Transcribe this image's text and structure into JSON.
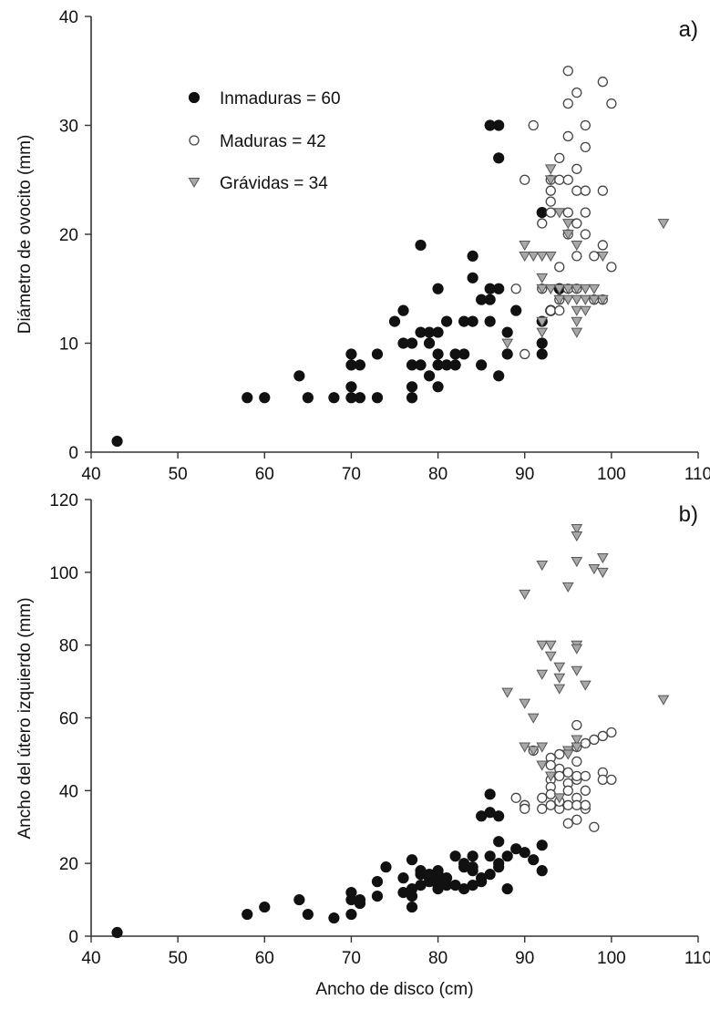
{
  "chart_data": [
    {
      "type": "scatter",
      "panel_label": "a)",
      "ylabel": "Diámetro de ovocito (mm)",
      "xlabel": "",
      "xlim": [
        40,
        110
      ],
      "ylim": [
        0,
        40
      ],
      "xticks": [
        40,
        50,
        60,
        70,
        80,
        90,
        100,
        110
      ],
      "yticks": [
        0,
        10,
        20,
        30,
        40
      ],
      "legend": {
        "placement": "upper-left",
        "entries": [
          {
            "label": "Inmaduras = 60",
            "marker": "filled-circle"
          },
          {
            "label": "Maduras = 42",
            "marker": "open-circle"
          },
          {
            "label": "Grávidas = 34",
            "marker": "triangle-down"
          }
        ]
      },
      "series": [
        {
          "name": "Inmaduras = 60",
          "marker": "filled-circle",
          "color": "#111111",
          "points": [
            [
              43,
              1
            ],
            [
              58,
              5
            ],
            [
              60,
              5
            ],
            [
              64,
              7
            ],
            [
              65,
              5
            ],
            [
              68,
              5
            ],
            [
              70,
              5
            ],
            [
              70,
              6
            ],
            [
              70,
              8
            ],
            [
              70,
              9
            ],
            [
              71,
              5
            ],
            [
              71,
              8
            ],
            [
              73,
              5
            ],
            [
              73,
              9
            ],
            [
              75,
              12
            ],
            [
              76,
              10
            ],
            [
              76,
              13
            ],
            [
              77,
              5
            ],
            [
              77,
              6
            ],
            [
              77,
              8
            ],
            [
              77,
              10
            ],
            [
              78,
              8
            ],
            [
              78,
              11
            ],
            [
              78,
              19
            ],
            [
              79,
              7
            ],
            [
              79,
              10
            ],
            [
              79,
              11
            ],
            [
              80,
              6
            ],
            [
              80,
              8
            ],
            [
              80,
              9
            ],
            [
              80,
              11
            ],
            [
              80,
              15
            ],
            [
              81,
              8
            ],
            [
              81,
              12
            ],
            [
              82,
              9
            ],
            [
              82,
              8
            ],
            [
              83,
              12
            ],
            [
              83,
              9
            ],
            [
              84,
              12
            ],
            [
              84,
              16
            ],
            [
              84,
              18
            ],
            [
              85,
              8
            ],
            [
              85,
              14
            ],
            [
              86,
              12
            ],
            [
              86,
              14
            ],
            [
              86,
              15
            ],
            [
              86,
              30
            ],
            [
              87,
              7
            ],
            [
              87,
              15
            ],
            [
              87,
              27
            ],
            [
              87,
              30
            ],
            [
              88,
              11
            ],
            [
              88,
              9
            ],
            [
              89,
              13
            ],
            [
              92,
              9
            ],
            [
              92,
              12
            ],
            [
              92,
              22
            ],
            [
              93,
              13
            ],
            [
              94,
              15
            ],
            [
              92,
              10
            ]
          ]
        },
        {
          "name": "Maduras = 42",
          "marker": "open-circle",
          "color": "#ffffff",
          "points": [
            [
              89,
              15
            ],
            [
              90,
              9
            ],
            [
              90,
              25
            ],
            [
              91,
              30
            ],
            [
              92,
              21
            ],
            [
              92,
              15
            ],
            [
              93,
              22
            ],
            [
              93,
              24
            ],
            [
              93,
              25
            ],
            [
              93,
              23
            ],
            [
              93,
              13
            ],
            [
              94,
              27
            ],
            [
              94,
              25
            ],
            [
              94,
              17
            ],
            [
              94,
              14
            ],
            [
              94,
              13
            ],
            [
              95,
              32
            ],
            [
              95,
              35
            ],
            [
              95,
              29
            ],
            [
              95,
              25
            ],
            [
              95,
              22
            ],
            [
              95,
              20
            ],
            [
              95,
              15
            ],
            [
              96,
              33
            ],
            [
              96,
              26
            ],
            [
              96,
              21
            ],
            [
              96,
              18
            ],
            [
              96,
              15
            ],
            [
              96,
              24
            ],
            [
              97,
              30
            ],
            [
              97,
              24
            ],
            [
              97,
              22
            ],
            [
              97,
              20
            ],
            [
              97,
              28
            ],
            [
              98,
              14
            ],
            [
              98,
              18
            ],
            [
              99,
              34
            ],
            [
              99,
              24
            ],
            [
              99,
              19
            ],
            [
              99,
              14
            ],
            [
              100,
              32
            ],
            [
              100,
              17
            ]
          ]
        },
        {
          "name": "Grávidas = 34",
          "marker": "triangle-down",
          "color": "#a8a8a8",
          "points": [
            [
              88,
              10
            ],
            [
              90,
              19
            ],
            [
              90,
              18
            ],
            [
              91,
              18
            ],
            [
              92,
              18
            ],
            [
              92,
              16
            ],
            [
              92,
              15
            ],
            [
              92,
              12
            ],
            [
              92,
              11
            ],
            [
              93,
              26
            ],
            [
              93,
              25
            ],
            [
              93,
              18
            ],
            [
              93,
              15
            ],
            [
              94,
              22
            ],
            [
              94,
              15
            ],
            [
              94,
              14
            ],
            [
              95,
              20
            ],
            [
              95,
              21
            ],
            [
              95,
              15
            ],
            [
              95,
              14
            ],
            [
              96,
              19
            ],
            [
              96,
              15
            ],
            [
              96,
              14
            ],
            [
              96,
              13
            ],
            [
              96,
              12
            ],
            [
              96,
              11
            ],
            [
              97,
              14
            ],
            [
              97,
              13
            ],
            [
              97,
              15
            ],
            [
              98,
              15
            ],
            [
              98,
              14
            ],
            [
              99,
              14
            ],
            [
              99,
              18
            ],
            [
              106,
              21
            ]
          ]
        }
      ]
    },
    {
      "type": "scatter",
      "panel_label": "b)",
      "ylabel": "Ancho del útero izquierdo (mm)",
      "xlabel": "Ancho de disco (cm)",
      "xlim": [
        40,
        110
      ],
      "ylim": [
        0,
        120
      ],
      "xticks": [
        40,
        50,
        60,
        70,
        80,
        90,
        100,
        110
      ],
      "yticks": [
        0,
        20,
        40,
        60,
        80,
        100,
        120
      ],
      "series": [
        {
          "name": "Inmaduras = 60",
          "marker": "filled-circle",
          "color": "#111111",
          "points": [
            [
              43,
              1
            ],
            [
              58,
              6
            ],
            [
              60,
              8
            ],
            [
              64,
              10
            ],
            [
              65,
              6
            ],
            [
              68,
              5
            ],
            [
              70,
              6
            ],
            [
              70,
              10
            ],
            [
              70,
              12
            ],
            [
              71,
              9
            ],
            [
              71,
              10
            ],
            [
              73,
              11
            ],
            [
              73,
              15
            ],
            [
              74,
              19
            ],
            [
              76,
              12
            ],
            [
              76,
              16
            ],
            [
              77,
              8
            ],
            [
              77,
              11
            ],
            [
              77,
              13
            ],
            [
              77,
              21
            ],
            [
              78,
              14
            ],
            [
              78,
              17
            ],
            [
              78,
              18
            ],
            [
              79,
              15
            ],
            [
              79,
              16
            ],
            [
              79,
              17
            ],
            [
              80,
              13
            ],
            [
              80,
              14
            ],
            [
              80,
              15
            ],
            [
              80,
              17
            ],
            [
              80,
              18
            ],
            [
              81,
              14
            ],
            [
              81,
              16
            ],
            [
              82,
              14
            ],
            [
              82,
              22
            ],
            [
              83,
              13
            ],
            [
              83,
              19
            ],
            [
              84,
              18
            ],
            [
              84,
              22
            ],
            [
              84,
              14
            ],
            [
              85,
              15
            ],
            [
              85,
              33
            ],
            [
              86,
              17
            ],
            [
              86,
              22
            ],
            [
              86,
              34
            ],
            [
              86,
              39
            ],
            [
              87,
              20
            ],
            [
              87,
              26
            ],
            [
              87,
              33
            ],
            [
              87,
              19
            ],
            [
              88,
              13
            ],
            [
              88,
              22
            ],
            [
              89,
              24
            ],
            [
              92,
              18
            ],
            [
              92,
              25
            ],
            [
              91,
              21
            ],
            [
              90,
              23
            ],
            [
              85,
              16
            ],
            [
              84,
              19
            ],
            [
              83,
              20
            ]
          ]
        },
        {
          "name": "Maduras = 42",
          "marker": "open-circle",
          "color": "#ffffff",
          "points": [
            [
              89,
              38
            ],
            [
              90,
              36
            ],
            [
              90,
              35
            ],
            [
              91,
              51
            ],
            [
              92,
              35
            ],
            [
              92,
              38
            ],
            [
              93,
              49
            ],
            [
              93,
              47
            ],
            [
              93,
              43
            ],
            [
              93,
              41
            ],
            [
              93,
              36
            ],
            [
              94,
              46
            ],
            [
              94,
              44
            ],
            [
              94,
              35
            ],
            [
              94,
              37
            ],
            [
              95,
              42
            ],
            [
              95,
              40
            ],
            [
              95,
              36
            ],
            [
              95,
              31
            ],
            [
              96,
              58
            ],
            [
              96,
              52
            ],
            [
              96,
              43
            ],
            [
              96,
              38
            ],
            [
              96,
              36
            ],
            [
              96,
              32
            ],
            [
              96,
              44
            ],
            [
              96,
              48
            ],
            [
              97,
              53
            ],
            [
              97,
              44
            ],
            [
              97,
              40
            ],
            [
              97,
              35
            ],
            [
              97,
              36
            ],
            [
              98,
              30
            ],
            [
              98,
              54
            ],
            [
              99,
              55
            ],
            [
              99,
              45
            ],
            [
              99,
              43
            ],
            [
              100,
              56
            ],
            [
              100,
              43
            ],
            [
              95,
              45
            ],
            [
              94,
              50
            ],
            [
              93,
              39
            ]
          ]
        },
        {
          "name": "Grávidas = 34",
          "marker": "triangle-down",
          "color": "#a8a8a8",
          "points": [
            [
              88,
              67
            ],
            [
              90,
              94
            ],
            [
              90,
              64
            ],
            [
              90,
              52
            ],
            [
              91,
              60
            ],
            [
              91,
              51
            ],
            [
              92,
              102
            ],
            [
              92,
              80
            ],
            [
              92,
              72
            ],
            [
              92,
              52
            ],
            [
              92,
              47
            ],
            [
              93,
              80
            ],
            [
              93,
              77
            ],
            [
              93,
              44
            ],
            [
              94,
              74
            ],
            [
              94,
              71
            ],
            [
              94,
              68
            ],
            [
              95,
              96
            ],
            [
              95,
              51
            ],
            [
              95,
              50
            ],
            [
              96,
              112
            ],
            [
              96,
              110
            ],
            [
              96,
              103
            ],
            [
              96,
              80
            ],
            [
              96,
              79
            ],
            [
              96,
              73
            ],
            [
              96,
              54
            ],
            [
              96,
              52
            ],
            [
              97,
              69
            ],
            [
              98,
              101
            ],
            [
              99,
              104
            ],
            [
              99,
              100
            ],
            [
              106,
              65
            ],
            [
              94,
              38
            ]
          ]
        }
      ]
    }
  ]
}
